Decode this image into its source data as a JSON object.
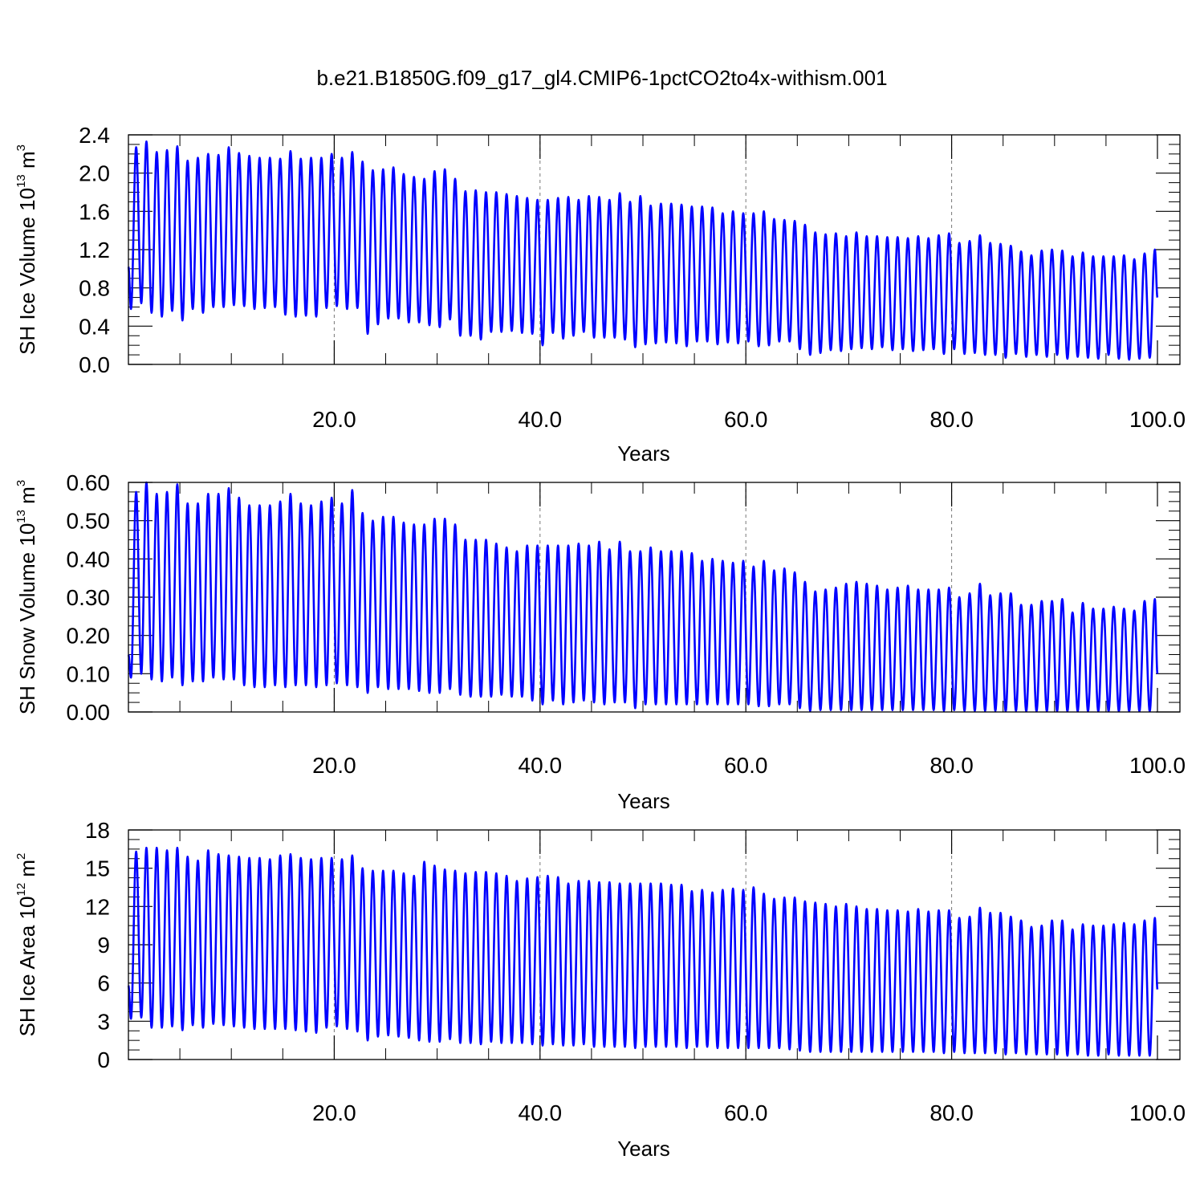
{
  "title": "b.e21.B1850G.f09_g17_gl4.CMIP6-1pctCO2to4x-withism.001",
  "chart_data": [
    {
      "type": "line",
      "ylabel_main": "SH Ice Volume 10",
      "ylabel_exp": "13",
      "ylabel_unit": " m",
      "ylabel_unit_exp": "3",
      "xlabel": "Years",
      "xlim": [
        0,
        100
      ],
      "ylim": [
        0,
        2.4
      ],
      "xticks": [
        20,
        40,
        60,
        80,
        100
      ],
      "xtick_labels": [
        "20.0",
        "40.0",
        "60.0",
        "80.0",
        "100.0"
      ],
      "yticks": [
        0,
        0.4,
        0.8,
        1.2,
        1.6,
        2.0,
        2.4
      ],
      "ytick_labels": [
        "0.0",
        "0.4",
        "0.8",
        "1.2",
        "1.6",
        "2.0",
        "2.4"
      ],
      "grid_x": [
        20,
        40,
        60,
        80
      ],
      "start": 1.02,
      "end": 0.7,
      "series": [
        {
          "name": "SH Ice Volume",
          "color": "#0000ff",
          "max": [
            2.27,
            2.33,
            2.22,
            2.24,
            2.28,
            2.13,
            2.16,
            2.2,
            2.19,
            2.27,
            2.21,
            2.18,
            2.16,
            2.16,
            2.15,
            2.23,
            2.15,
            2.16,
            2.16,
            2.2,
            2.16,
            2.22,
            2.12,
            2.03,
            2.04,
            2.06,
            1.99,
            1.96,
            1.94,
            2.02,
            2.04,
            1.94,
            1.81,
            1.82,
            1.8,
            1.8,
            1.78,
            1.76,
            1.74,
            1.72,
            1.72,
            1.74,
            1.75,
            1.72,
            1.76,
            1.75,
            1.72,
            1.79,
            1.7,
            1.76,
            1.66,
            1.68,
            1.68,
            1.67,
            1.65,
            1.65,
            1.64,
            1.58,
            1.6,
            1.58,
            1.58,
            1.6,
            1.52,
            1.51,
            1.5,
            1.46,
            1.38,
            1.36,
            1.37,
            1.34,
            1.38,
            1.34,
            1.34,
            1.33,
            1.33,
            1.32,
            1.34,
            1.32,
            1.35,
            1.37,
            1.27,
            1.29,
            1.35,
            1.27,
            1.26,
            1.24,
            1.18,
            1.14,
            1.19,
            1.2,
            1.19,
            1.13,
            1.17,
            1.13,
            1.13,
            1.13,
            1.14,
            1.1,
            1.16,
            1.2
          ],
          "min": [
            0.58,
            0.64,
            0.54,
            0.5,
            0.56,
            0.46,
            0.58,
            0.54,
            0.6,
            0.6,
            0.62,
            0.61,
            0.58,
            0.59,
            0.6,
            0.52,
            0.5,
            0.51,
            0.5,
            0.59,
            0.61,
            0.58,
            0.59,
            0.32,
            0.42,
            0.48,
            0.48,
            0.44,
            0.44,
            0.41,
            0.39,
            0.47,
            0.3,
            0.3,
            0.26,
            0.34,
            0.34,
            0.35,
            0.33,
            0.32,
            0.2,
            0.33,
            0.27,
            0.3,
            0.34,
            0.28,
            0.28,
            0.28,
            0.26,
            0.18,
            0.21,
            0.22,
            0.23,
            0.22,
            0.19,
            0.24,
            0.24,
            0.21,
            0.23,
            0.22,
            0.24,
            0.19,
            0.2,
            0.24,
            0.24,
            0.16,
            0.1,
            0.12,
            0.15,
            0.14,
            0.16,
            0.17,
            0.16,
            0.18,
            0.15,
            0.16,
            0.14,
            0.15,
            0.16,
            0.11,
            0.16,
            0.11,
            0.12,
            0.1,
            0.1,
            0.07,
            0.11,
            0.08,
            0.1,
            0.08,
            0.1,
            0.06,
            0.08,
            0.07,
            0.06,
            0.1,
            0.06,
            0.05,
            0.06,
            0.07
          ]
        }
      ]
    },
    {
      "type": "line",
      "ylabel_main": "SH Snow Volume 10",
      "ylabel_exp": "13",
      "ylabel_unit": " m",
      "ylabel_unit_exp": "3",
      "xlabel": "Years",
      "xlim": [
        0,
        100
      ],
      "ylim": [
        0,
        0.6
      ],
      "xticks": [
        20,
        40,
        60,
        80,
        100
      ],
      "xtick_labels": [
        "20.0",
        "40.0",
        "60.0",
        "80.0",
        "100.0"
      ],
      "yticks": [
        0,
        0.1,
        0.2,
        0.3,
        0.4,
        0.5,
        0.6
      ],
      "ytick_labels": [
        "0.00",
        "0.10",
        "0.20",
        "0.30",
        "0.40",
        "0.50",
        "0.60"
      ],
      "grid_x": [
        20,
        40,
        60,
        80
      ],
      "start": 0.15,
      "end": 0.1,
      "series": [
        {
          "name": "SH Snow Volume",
          "color": "#0000ff",
          "max": [
            0.575,
            0.6,
            0.57,
            0.575,
            0.595,
            0.545,
            0.545,
            0.57,
            0.57,
            0.585,
            0.56,
            0.54,
            0.54,
            0.54,
            0.55,
            0.57,
            0.545,
            0.54,
            0.55,
            0.56,
            0.545,
            0.58,
            0.52,
            0.5,
            0.51,
            0.51,
            0.495,
            0.49,
            0.49,
            0.505,
            0.505,
            0.49,
            0.45,
            0.45,
            0.45,
            0.44,
            0.43,
            0.42,
            0.435,
            0.435,
            0.435,
            0.435,
            0.435,
            0.44,
            0.435,
            0.445,
            0.425,
            0.445,
            0.42,
            0.42,
            0.43,
            0.42,
            0.42,
            0.42,
            0.415,
            0.395,
            0.4,
            0.395,
            0.39,
            0.395,
            0.38,
            0.395,
            0.37,
            0.375,
            0.365,
            0.34,
            0.315,
            0.32,
            0.325,
            0.335,
            0.34,
            0.335,
            0.33,
            0.32,
            0.325,
            0.33,
            0.32,
            0.32,
            0.32,
            0.325,
            0.3,
            0.31,
            0.335,
            0.305,
            0.31,
            0.31,
            0.28,
            0.28,
            0.29,
            0.29,
            0.295,
            0.26,
            0.285,
            0.27,
            0.27,
            0.275,
            0.27,
            0.265,
            0.29,
            0.295
          ]
        }
      ],
      "series_min": [
        0.09,
        0.1,
        0.085,
        0.08,
        0.09,
        0.07,
        0.08,
        0.08,
        0.09,
        0.085,
        0.085,
        0.07,
        0.065,
        0.065,
        0.07,
        0.065,
        0.07,
        0.07,
        0.065,
        0.07,
        0.075,
        0.07,
        0.065,
        0.05,
        0.065,
        0.06,
        0.06,
        0.06,
        0.055,
        0.05,
        0.05,
        0.06,
        0.045,
        0.04,
        0.04,
        0.04,
        0.045,
        0.04,
        0.04,
        0.03,
        0.02,
        0.03,
        0.02,
        0.025,
        0.03,
        0.025,
        0.02,
        0.025,
        0.025,
        0.01,
        0.02,
        0.02,
        0.02,
        0.02,
        0.02,
        0.02,
        0.02,
        0.02,
        0.02,
        0.02,
        0.02,
        0.015,
        0.015,
        0.02,
        0.02,
        0.01,
        0.003,
        0.005,
        0.005,
        0.005,
        0.005,
        0.005,
        0.005,
        0.005,
        0.005,
        0.005,
        0.005,
        0.005,
        0.005,
        0.003,
        0.005,
        0.003,
        0.003,
        0.003,
        0.003,
        0.002,
        0.003,
        0.002,
        0.002,
        0.002,
        0.002,
        0.002,
        0.002,
        0.002,
        0.002,
        0.002,
        0.002,
        0.002,
        0.002,
        0.002
      ]
    },
    {
      "type": "line",
      "ylabel_main": "SH Ice Area 10",
      "ylabel_exp": "12",
      "ylabel_unit": " m",
      "ylabel_unit_exp": "2",
      "xlabel": "Years",
      "xlim": [
        0,
        100
      ],
      "ylim": [
        0,
        18
      ],
      "xticks": [
        20,
        40,
        60,
        80,
        100
      ],
      "xtick_labels": [
        "20.0",
        "40.0",
        "60.0",
        "80.0",
        "100.0"
      ],
      "yticks": [
        0,
        3,
        6,
        9,
        12,
        15,
        18
      ],
      "ytick_labels": [
        "0",
        "3",
        "6",
        "9",
        "12",
        "15",
        "18"
      ],
      "grid_x": [
        20,
        40,
        60,
        80
      ],
      "start": 5.8,
      "end": 5.5,
      "series": [
        {
          "name": "SH Ice Area",
          "color": "#0000ff",
          "max": [
            16.3,
            16.6,
            16.6,
            16.4,
            16.6,
            15.9,
            15.6,
            16.4,
            16.1,
            16.0,
            15.9,
            15.8,
            15.8,
            15.7,
            16.0,
            16.1,
            15.8,
            15.7,
            15.8,
            15.8,
            15.7,
            16.0,
            15.0,
            14.8,
            14.8,
            14.8,
            14.6,
            14.4,
            15.5,
            15.2,
            14.9,
            14.8,
            14.6,
            14.7,
            14.7,
            14.6,
            14.4,
            14.0,
            14.2,
            14.3,
            14.4,
            14.3,
            13.8,
            14.0,
            14.0,
            13.9,
            13.9,
            13.8,
            13.8,
            13.8,
            13.8,
            13.8,
            13.7,
            13.7,
            13.2,
            13.3,
            13.1,
            13.3,
            13.4,
            13.3,
            13.5,
            13.0,
            12.6,
            12.7,
            12.7,
            12.4,
            12.3,
            12.2,
            12.0,
            12.2,
            12.0,
            11.8,
            11.8,
            11.7,
            11.7,
            11.6,
            11.8,
            11.6,
            11.7,
            11.7,
            11.1,
            11.2,
            11.9,
            11.5,
            11.5,
            11.2,
            10.9,
            10.4,
            10.5,
            10.9,
            10.9,
            10.2,
            10.6,
            10.5,
            10.5,
            10.6,
            10.7,
            10.6,
            10.9,
            11.1
          ]
        }
      ],
      "series_min": [
        3.2,
        3.3,
        2.5,
        2.5,
        2.6,
        2.3,
        2.7,
        2.5,
        2.8,
        2.7,
        2.6,
        2.5,
        2.4,
        2.4,
        2.4,
        2.4,
        2.3,
        2.2,
        2.1,
        2.5,
        2.6,
        2.4,
        2.2,
        1.5,
        1.8,
        1.9,
        1.8,
        1.7,
        1.5,
        1.4,
        1.4,
        1.6,
        1.3,
        1.3,
        1.2,
        1.4,
        1.3,
        1.3,
        1.3,
        1.2,
        1.1,
        1.2,
        1.1,
        1.1,
        1.2,
        1.0,
        1.0,
        1.0,
        1.0,
        0.9,
        1.0,
        1.0,
        1.0,
        1.0,
        0.9,
        1.0,
        1.0,
        0.9,
        0.9,
        0.9,
        0.9,
        0.9,
        0.9,
        0.9,
        0.8,
        0.7,
        0.6,
        0.6,
        0.6,
        0.6,
        0.6,
        0.6,
        0.6,
        0.6,
        0.6,
        0.6,
        0.6,
        0.6,
        0.6,
        0.5,
        0.6,
        0.5,
        0.5,
        0.5,
        0.5,
        0.4,
        0.5,
        0.4,
        0.4,
        0.4,
        0.4,
        0.3,
        0.4,
        0.3,
        0.3,
        0.4,
        0.3,
        0.3,
        0.3,
        0.3
      ]
    }
  ]
}
